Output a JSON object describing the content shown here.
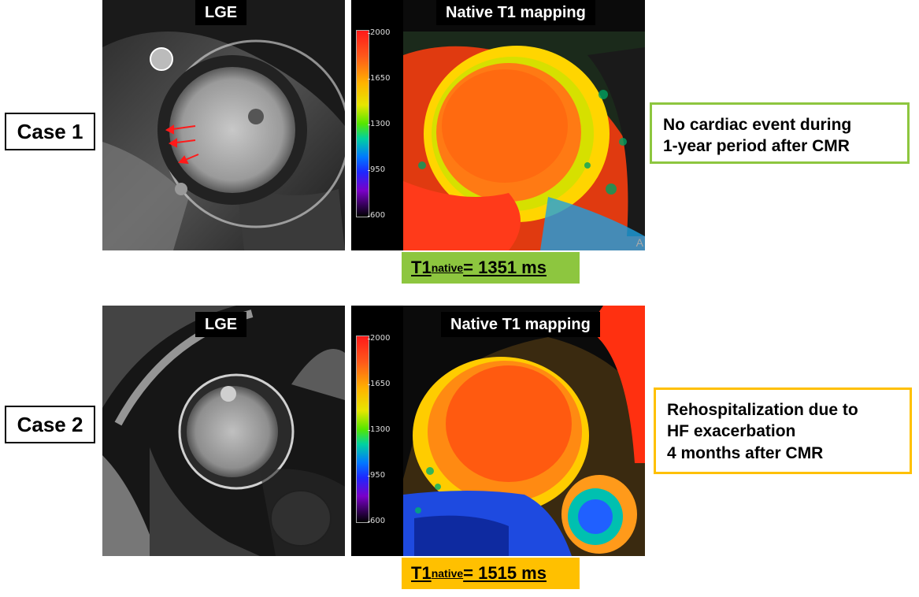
{
  "colors": {
    "green": "#8dc63f",
    "orange": "#ffc000"
  },
  "scale_ticks": [
    "2000",
    "1650",
    "1300",
    "950",
    "600"
  ],
  "case1": {
    "label": "Case 1",
    "lge_title": "LGE",
    "t1map_title": "Native T1 mapping",
    "t1": {
      "prefix": "T1",
      "subscript": "native",
      "value": " = 1351 ms"
    },
    "outcome": [
      "No cardiac event during",
      "1-year period after CMR"
    ],
    "corner_mark": "A"
  },
  "case2": {
    "label": "Case 2",
    "lge_title": "LGE",
    "t1map_title": "Native T1 mapping",
    "t1": {
      "prefix": "T1",
      "subscript": "native",
      "value": " = 1515 ms"
    },
    "outcome": [
      "Rehospitalization due to",
      "HF exacerbation",
      "4 months after CMR"
    ]
  }
}
